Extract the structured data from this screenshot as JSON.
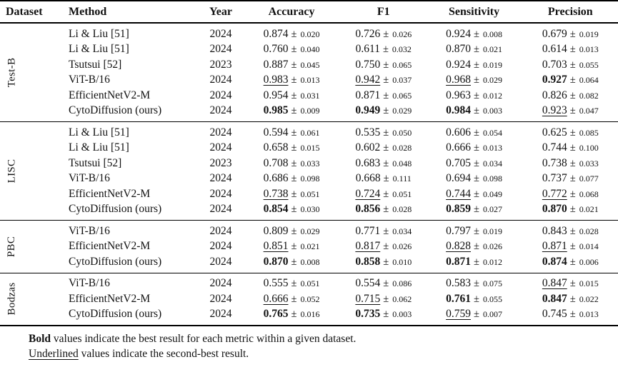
{
  "table": {
    "pm": "±",
    "columns": [
      "Dataset",
      "Method",
      "Year",
      "Accuracy",
      "F1",
      "Sensitivity",
      "Precision"
    ],
    "groups": [
      {
        "dataset": "Test-B",
        "rows": [
          {
            "method": "Li & Liu [51]",
            "year": "2024",
            "metrics": [
              {
                "v": "0.874",
                "e": "0.020",
                "s": "normal"
              },
              {
                "v": "0.726",
                "e": "0.026",
                "s": "normal"
              },
              {
                "v": "0.924",
                "e": "0.008",
                "s": "normal"
              },
              {
                "v": "0.679",
                "e": "0.019",
                "s": "normal"
              }
            ]
          },
          {
            "method": "Li & Liu [51]",
            "year": "2024",
            "metrics": [
              {
                "v": "0.760",
                "e": "0.040",
                "s": "normal"
              },
              {
                "v": "0.611",
                "e": "0.032",
                "s": "normal"
              },
              {
                "v": "0.870",
                "e": "0.021",
                "s": "normal"
              },
              {
                "v": "0.614",
                "e": "0.013",
                "s": "normal"
              }
            ]
          },
          {
            "method": "Tsutsui [52]",
            "year": "2023",
            "metrics": [
              {
                "v": "0.887",
                "e": "0.045",
                "s": "normal"
              },
              {
                "v": "0.750",
                "e": "0.065",
                "s": "normal"
              },
              {
                "v": "0.924",
                "e": "0.019",
                "s": "normal"
              },
              {
                "v": "0.703",
                "e": "0.055",
                "s": "normal"
              }
            ]
          },
          {
            "method": "ViT-B/16",
            "year": "2024",
            "metrics": [
              {
                "v": "0.983",
                "e": "0.013",
                "s": "underline"
              },
              {
                "v": "0.942",
                "e": "0.037",
                "s": "underline"
              },
              {
                "v": "0.968",
                "e": "0.029",
                "s": "underline"
              },
              {
                "v": "0.927",
                "e": "0.064",
                "s": "bold"
              }
            ]
          },
          {
            "method": "EfficientNetV2-M",
            "year": "2024",
            "metrics": [
              {
                "v": "0.954",
                "e": "0.031",
                "s": "normal"
              },
              {
                "v": "0.871",
                "e": "0.065",
                "s": "normal"
              },
              {
                "v": "0.963",
                "e": "0.012",
                "s": "normal"
              },
              {
                "v": "0.826",
                "e": "0.082",
                "s": "normal"
              }
            ]
          },
          {
            "method": "CytoDiffusion (ours)",
            "year": "2024",
            "metrics": [
              {
                "v": "0.985",
                "e": "0.009",
                "s": "bold"
              },
              {
                "v": "0.949",
                "e": "0.029",
                "s": "bold"
              },
              {
                "v": "0.984",
                "e": "0.003",
                "s": "bold"
              },
              {
                "v": "0.923",
                "e": "0.047",
                "s": "underline"
              }
            ]
          }
        ]
      },
      {
        "dataset": "LISC",
        "rows": [
          {
            "method": "Li & Liu [51]",
            "year": "2024",
            "metrics": [
              {
                "v": "0.594",
                "e": "0.061",
                "s": "normal"
              },
              {
                "v": "0.535",
                "e": "0.050",
                "s": "normal"
              },
              {
                "v": "0.606",
                "e": "0.054",
                "s": "normal"
              },
              {
                "v": "0.625",
                "e": "0.085",
                "s": "normal"
              }
            ]
          },
          {
            "method": "Li & Liu [51]",
            "year": "2024",
            "metrics": [
              {
                "v": "0.658",
                "e": "0.015",
                "s": "normal"
              },
              {
                "v": "0.602",
                "e": "0.028",
                "s": "normal"
              },
              {
                "v": "0.666",
                "e": "0.013",
                "s": "normal"
              },
              {
                "v": "0.744",
                "e": "0.100",
                "s": "normal"
              }
            ]
          },
          {
            "method": "Tsutsui [52]",
            "year": "2023",
            "metrics": [
              {
                "v": "0.708",
                "e": "0.033",
                "s": "normal"
              },
              {
                "v": "0.683",
                "e": "0.048",
                "s": "normal"
              },
              {
                "v": "0.705",
                "e": "0.034",
                "s": "normal"
              },
              {
                "v": "0.738",
                "e": "0.033",
                "s": "normal"
              }
            ]
          },
          {
            "method": "ViT-B/16",
            "year": "2024",
            "metrics": [
              {
                "v": "0.686",
                "e": "0.098",
                "s": "normal"
              },
              {
                "v": "0.668",
                "e": "0.111",
                "s": "normal"
              },
              {
                "v": "0.694",
                "e": "0.098",
                "s": "normal"
              },
              {
                "v": "0.737",
                "e": "0.077",
                "s": "normal"
              }
            ]
          },
          {
            "method": "EfficientNetV2-M",
            "year": "2024",
            "metrics": [
              {
                "v": "0.738",
                "e": "0.051",
                "s": "underline"
              },
              {
                "v": "0.724",
                "e": "0.051",
                "s": "underline"
              },
              {
                "v": "0.744",
                "e": "0.049",
                "s": "underline"
              },
              {
                "v": "0.772",
                "e": "0.068",
                "s": "underline"
              }
            ]
          },
          {
            "method": "CytoDiffusion (ours)",
            "year": "2024",
            "metrics": [
              {
                "v": "0.854",
                "e": "0.030",
                "s": "bold"
              },
              {
                "v": "0.856",
                "e": "0.028",
                "s": "bold"
              },
              {
                "v": "0.859",
                "e": "0.027",
                "s": "bold"
              },
              {
                "v": "0.870",
                "e": "0.021",
                "s": "bold"
              }
            ]
          }
        ]
      },
      {
        "dataset": "PBC",
        "rows": [
          {
            "method": "ViT-B/16",
            "year": "2024",
            "metrics": [
              {
                "v": "0.809",
                "e": "0.029",
                "s": "normal"
              },
              {
                "v": "0.771",
                "e": "0.034",
                "s": "normal"
              },
              {
                "v": "0.797",
                "e": "0.019",
                "s": "normal"
              },
              {
                "v": "0.843",
                "e": "0.028",
                "s": "normal"
              }
            ]
          },
          {
            "method": "EfficientNetV2-M",
            "year": "2024",
            "metrics": [
              {
                "v": "0.851",
                "e": "0.021",
                "s": "underline"
              },
              {
                "v": "0.817",
                "e": "0.026",
                "s": "underline"
              },
              {
                "v": "0.828",
                "e": "0.026",
                "s": "underline"
              },
              {
                "v": "0.871",
                "e": "0.014",
                "s": "underline"
              }
            ]
          },
          {
            "method": "CytoDiffusion (ours)",
            "year": "2024",
            "metrics": [
              {
                "v": "0.870",
                "e": "0.008",
                "s": "bold"
              },
              {
                "v": "0.858",
                "e": "0.010",
                "s": "bold"
              },
              {
                "v": "0.871",
                "e": "0.012",
                "s": "bold"
              },
              {
                "v": "0.874",
                "e": "0.006",
                "s": "bold"
              }
            ]
          }
        ]
      },
      {
        "dataset": "Bodzas",
        "rows": [
          {
            "method": "ViT-B/16",
            "year": "2024",
            "metrics": [
              {
                "v": "0.555",
                "e": "0.051",
                "s": "normal"
              },
              {
                "v": "0.554",
                "e": "0.086",
                "s": "normal"
              },
              {
                "v": "0.583",
                "e": "0.075",
                "s": "normal"
              },
              {
                "v": "0.847",
                "e": "0.015",
                "s": "underline"
              }
            ]
          },
          {
            "method": "EfficientNetV2-M",
            "year": "2024",
            "metrics": [
              {
                "v": "0.666",
                "e": "0.052",
                "s": "underline"
              },
              {
                "v": "0.715",
                "e": "0.062",
                "s": "underline"
              },
              {
                "v": "0.761",
                "e": "0.055",
                "s": "bold"
              },
              {
                "v": "0.847",
                "e": "0.022",
                "s": "bold"
              }
            ]
          },
          {
            "method": "CytoDiffusion (ours)",
            "year": "2024",
            "metrics": [
              {
                "v": "0.765",
                "e": "0.016",
                "s": "bold"
              },
              {
                "v": "0.735",
                "e": "0.003",
                "s": "bold"
              },
              {
                "v": "0.759",
                "e": "0.007",
                "s": "underline"
              },
              {
                "v": "0.745",
                "e": "0.013",
                "s": "normal"
              }
            ]
          }
        ]
      }
    ]
  },
  "footnotes": [
    {
      "lead": "Bold",
      "style": "bold",
      "rest": " values indicate the best result for each metric within a given dataset."
    },
    {
      "lead": "Underlined",
      "style": "underline",
      "rest": " values indicate the second-best result."
    }
  ]
}
